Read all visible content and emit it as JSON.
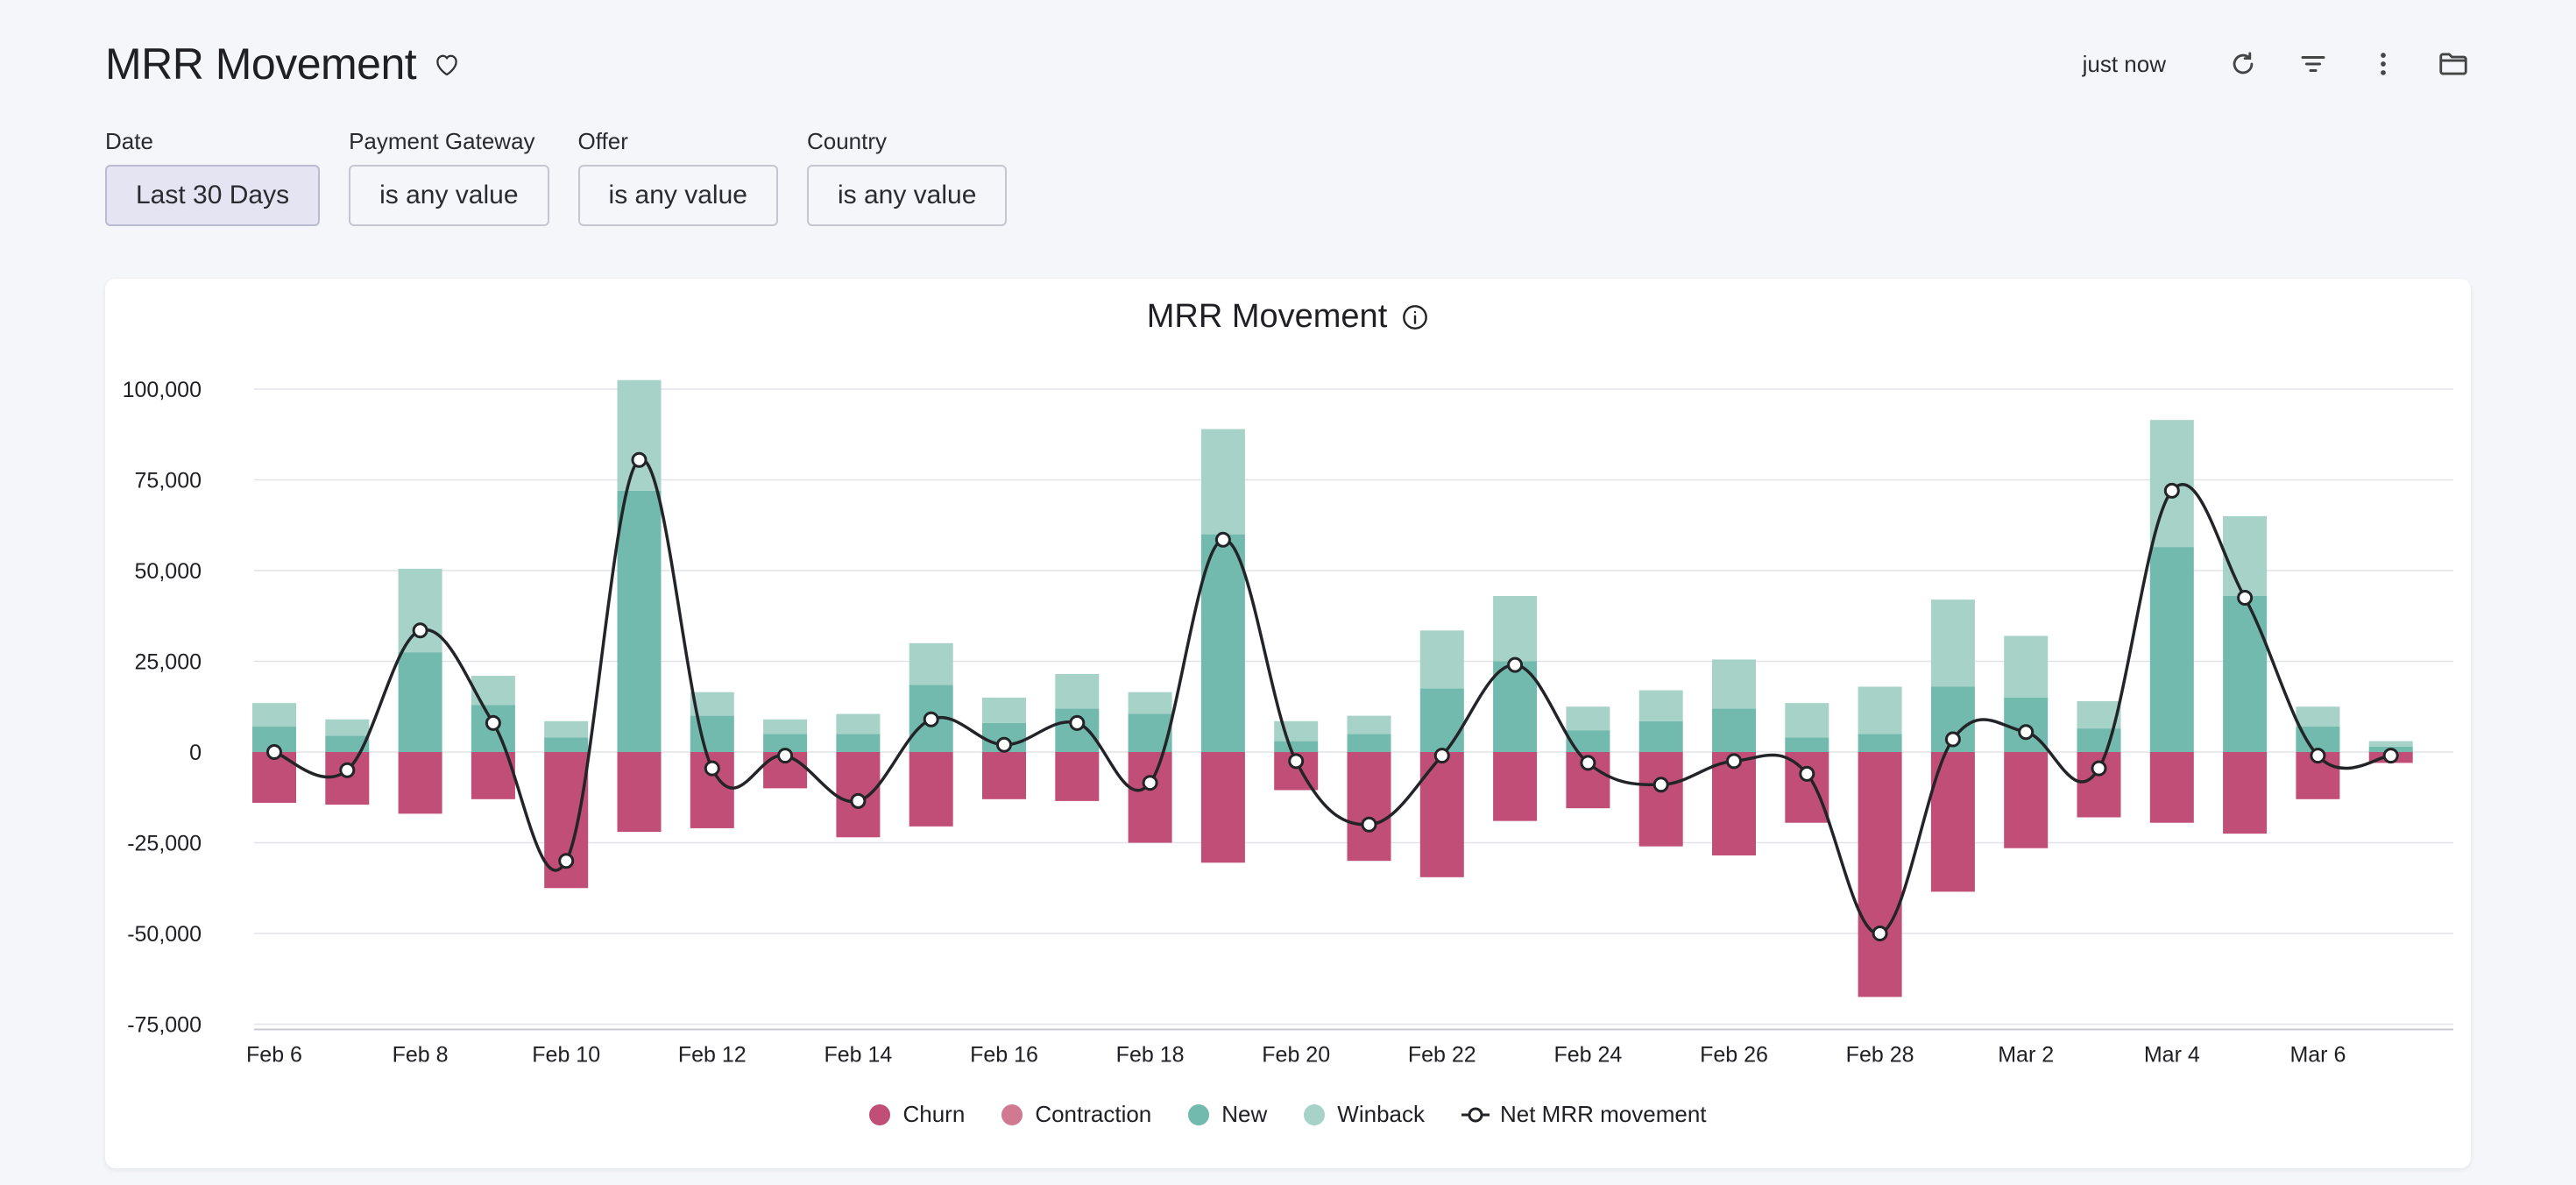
{
  "header": {
    "title": "MRR Movement",
    "updated": "just now"
  },
  "filters": [
    {
      "label": "Date",
      "value": "Last 30 Days"
    },
    {
      "label": "Payment Gateway",
      "value": "is any value"
    },
    {
      "label": "Offer",
      "value": "is any value"
    },
    {
      "label": "Country",
      "value": "is any value"
    }
  ],
  "colors": {
    "churn": "#c14e77",
    "contraction": "#d27992",
    "new": "#72b9ae",
    "winback": "#a6d2c8",
    "net": "#222428"
  },
  "chart_data": {
    "type": "bar",
    "title": "MRR Movement",
    "stacked": true,
    "ylim": [
      -75000,
      100000
    ],
    "yticks": [
      100000,
      75000,
      50000,
      25000,
      0,
      -25000,
      -50000,
      -75000
    ],
    "ytick_labels": [
      "100,000",
      "75,000",
      "50,000",
      "25,000",
      "0",
      "-25,000",
      "-50,000",
      "-75,000"
    ],
    "xtick_labels": [
      "Feb 6",
      "Feb 8",
      "Feb 10",
      "Feb 12",
      "Feb 14",
      "Feb 16",
      "Feb 18",
      "Feb 20",
      "Feb 22",
      "Feb 24",
      "Feb 26",
      "Feb 28",
      "Mar 2",
      "Mar 4",
      "Mar 6"
    ],
    "categories": [
      "Feb 6",
      "Feb 7",
      "Feb 8",
      "Feb 9",
      "Feb 10",
      "Feb 11",
      "Feb 12",
      "Feb 13",
      "Feb 14",
      "Feb 15",
      "Feb 16",
      "Feb 17",
      "Feb 18",
      "Feb 19",
      "Feb 20",
      "Feb 21",
      "Feb 22",
      "Feb 23",
      "Feb 24",
      "Feb 25",
      "Feb 26",
      "Feb 27",
      "Feb 28",
      "Mar 1",
      "Mar 2",
      "Mar 3",
      "Mar 4",
      "Mar 5",
      "Mar 6",
      "Mar 7"
    ],
    "grid": true,
    "legend_position": "bottom",
    "series": [
      {
        "name": "Churn",
        "type": "bar",
        "values": [
          -14000,
          -14500,
          -17000,
          -13000,
          -37500,
          -22000,
          -21000,
          -10000,
          -23500,
          -20500,
          -13000,
          -13500,
          -25000,
          -30500,
          -10500,
          -30000,
          -34500,
          -19000,
          -15500,
          -26000,
          -28500,
          -19500,
          -67500,
          -38500,
          -26500,
          -18000,
          -19500,
          -22500,
          -13000,
          -3000
        ]
      },
      {
        "name": "Contraction",
        "type": "bar",
        "values": [
          0,
          0,
          0,
          0,
          0,
          0,
          0,
          0,
          0,
          0,
          0,
          0,
          0,
          0,
          0,
          0,
          0,
          0,
          0,
          0,
          0,
          0,
          0,
          0,
          0,
          0,
          0,
          0,
          0,
          0
        ]
      },
      {
        "name": "New",
        "type": "bar",
        "values": [
          7000,
          4500,
          27500,
          13000,
          4000,
          72000,
          10000,
          5000,
          5000,
          18500,
          8000,
          12000,
          10500,
          60000,
          3000,
          5000,
          17500,
          25000,
          6000,
          8500,
          12000,
          4000,
          5000,
          18000,
          15000,
          6500,
          56500,
          43000,
          7000,
          1500
        ]
      },
      {
        "name": "Winback",
        "type": "bar",
        "values": [
          6500,
          4500,
          23000,
          8000,
          4500,
          30500,
          6500,
          4000,
          5500,
          11500,
          7000,
          9500,
          6000,
          29000,
          5500,
          5000,
          16000,
          18000,
          6500,
          8500,
          13500,
          9500,
          13000,
          24000,
          17000,
          7500,
          35000,
          22000,
          5500,
          1500
        ]
      },
      {
        "name": "Net MRR movement",
        "type": "line",
        "values": [
          0,
          -5000,
          33500,
          8000,
          -30000,
          80500,
          -4500,
          -1000,
          -13500,
          9000,
          2000,
          8000,
          -8500,
          58500,
          -2500,
          -20000,
          -1000,
          24000,
          -3000,
          -9000,
          -2500,
          -6000,
          -50000,
          3500,
          5500,
          -4500,
          72000,
          42500,
          -1000,
          -1000
        ]
      }
    ]
  }
}
